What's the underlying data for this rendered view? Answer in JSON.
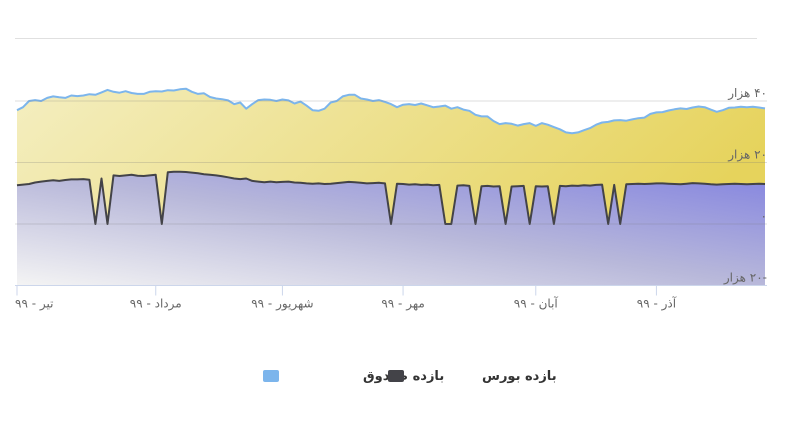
{
  "chart_data": {
    "type": "area",
    "categories": [
      "تیر - ۹۹",
      null,
      null,
      null,
      null,
      null,
      null,
      null,
      null,
      null,
      null,
      null,
      null,
      null,
      null,
      null,
      null,
      null,
      null,
      null,
      null,
      null,
      null,
      "مرداد - ۹۹",
      null,
      null,
      null,
      null,
      null,
      null,
      null,
      null,
      null,
      null,
      null,
      null,
      null,
      null,
      null,
      null,
      null,
      null,
      null,
      null,
      "شهریور - ۹۹",
      null,
      null,
      null,
      null,
      null,
      null,
      null,
      null,
      null,
      null,
      null,
      null,
      null,
      null,
      null,
      null,
      null,
      null,
      null,
      "مهر - ۹۹",
      null,
      null,
      null,
      null,
      null,
      null,
      null,
      null,
      null,
      null,
      null,
      null,
      null,
      null,
      null,
      null,
      null,
      null,
      null,
      null,
      null,
      "آبان - ۹۹",
      null,
      null,
      null,
      null,
      null,
      null,
      null,
      null,
      null,
      null,
      null,
      null,
      null,
      null,
      null,
      null,
      null,
      null,
      null,
      "آذر - ۹۹",
      null,
      null,
      null,
      null,
      null,
      null,
      null,
      null,
      null,
      null,
      null,
      null,
      null,
      null,
      null,
      null,
      null,
      null
    ],
    "series": [
      {
        "name": "بازده صندوق",
        "color": "#7cb5ec",
        "values": [
          37000,
          38000,
          40000,
          40300,
          40000,
          41000,
          41500,
          41200,
          41000,
          41800,
          41600,
          41800,
          42200,
          42000,
          42800,
          43600,
          43000,
          42700,
          43200,
          42600,
          42300,
          42300,
          43000,
          43200,
          43100,
          43500,
          43400,
          43800,
          44000,
          43000,
          42300,
          42500,
          41300,
          40800,
          40600,
          40200,
          39000,
          39500,
          37500,
          39000,
          40300,
          40500,
          40400,
          40000,
          40500,
          40200,
          39200,
          39800,
          38500,
          37000,
          36800,
          37500,
          39500,
          40000,
          41500,
          42000,
          42000,
          40800,
          40500,
          40000,
          40300,
          39700,
          39000,
          38000,
          38800,
          39000,
          38700,
          39200,
          38600,
          38000,
          38200,
          38500,
          37500,
          38000,
          37200,
          36800,
          35500,
          35000,
          35000,
          33500,
          32500,
          32800,
          32600,
          32000,
          32500,
          32800,
          31900,
          32800,
          32300,
          31500,
          30800,
          29800,
          29500,
          29800,
          30500,
          31200,
          32300,
          33000,
          33200,
          33700,
          33800,
          33600,
          34000,
          34400,
          34600,
          35800,
          36300,
          36400,
          36900,
          37300,
          37600,
          37400,
          37900,
          38200,
          38000,
          37200,
          36500,
          37000,
          37800,
          37900,
          38100,
          38000,
          38100,
          37900,
          37600
        ]
      },
      {
        "name": "بازده بورس",
        "color": "#434348",
        "values": [
          12600,
          12800,
          13000,
          13500,
          13800,
          14000,
          14200,
          14000,
          14300,
          14500,
          14500,
          14600,
          14400,
          0,
          14800,
          0,
          15800,
          15600,
          15800,
          16000,
          15700,
          15600,
          15800,
          16000,
          0,
          16800,
          17000,
          17000,
          16900,
          16700,
          16500,
          16200,
          16000,
          15800,
          15500,
          15200,
          14800,
          14600,
          14800,
          14000,
          13800,
          13600,
          13800,
          13600,
          13700,
          13800,
          13500,
          13400,
          13200,
          13100,
          13200,
          13000,
          13100,
          13300,
          13500,
          13700,
          13600,
          13400,
          13200,
          13300,
          13400,
          13200,
          0,
          13100,
          13000,
          12800,
          12900,
          12700,
          12800,
          12600,
          12700,
          0,
          0,
          12500,
          12600,
          12400,
          0,
          12300,
          12400,
          12200,
          12300,
          0,
          12200,
          12300,
          12400,
          0,
          12300,
          12200,
          12300,
          0,
          12400,
          12300,
          12500,
          12400,
          12600,
          12500,
          12700,
          12800,
          0,
          12700,
          0,
          12900,
          13000,
          13100,
          13000,
          13100,
          13200,
          13200,
          13100,
          13000,
          12900,
          13100,
          13300,
          13200,
          13100,
          12900,
          12800,
          12900,
          13000,
          13100,
          13000,
          12900,
          13000,
          13100,
          13000
        ]
      }
    ],
    "ylim": [
      -20000,
      60000
    ],
    "yticks": [
      {
        "value": -20000,
        "label": "-۲۰ هزار"
      },
      {
        "value": 0,
        "label": "۰"
      },
      {
        "value": 20000,
        "label": "۲۰ هزار"
      },
      {
        "value": 40000,
        "label": "۴۰ هزار"
      }
    ],
    "grid": true
  }
}
